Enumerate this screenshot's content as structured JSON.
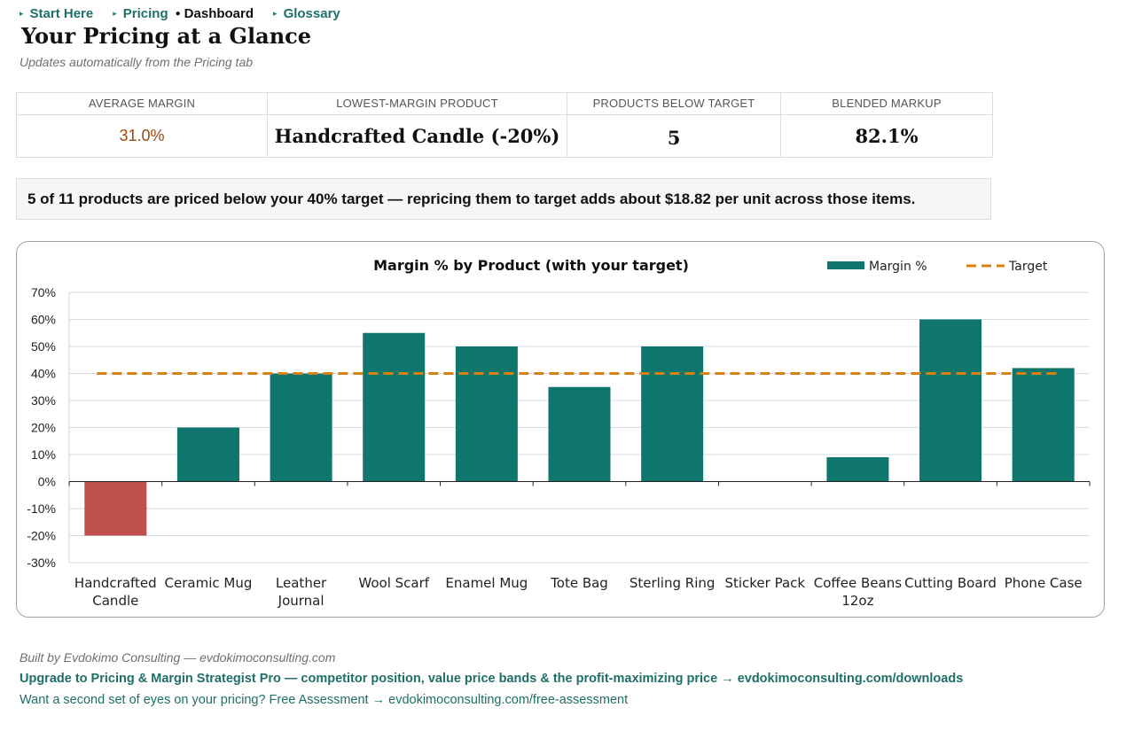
{
  "nav": {
    "items": [
      {
        "label": "Start Here",
        "current": false
      },
      {
        "label": "Pricing",
        "current": false
      },
      {
        "label": "Dashboard",
        "current": true
      },
      {
        "label": "Glossary",
        "current": false
      }
    ]
  },
  "header": {
    "title": "Your Pricing at a Glance",
    "subtitle": "Updates automatically from the Pricing tab"
  },
  "kpis": [
    {
      "label": "AVERAGE MARGIN",
      "value": "31.0%"
    },
    {
      "label": "LOWEST-MARGIN PRODUCT",
      "value": "Handcrafted Candle (-20%)"
    },
    {
      "label": "PRODUCTS BELOW TARGET",
      "value": "5"
    },
    {
      "label": "BLENDED MARKUP",
      "value": "82.1%"
    }
  ],
  "banner": {
    "text": "5 of 11 products are priced below your 40% target — repricing them to target adds about $18.82 per unit across those items."
  },
  "chart_data": {
    "type": "bar",
    "title": "Margin % by Product (with your target)",
    "categories": [
      "Handcrafted Candle",
      "Ceramic Mug",
      "Leather Journal",
      "Wool Scarf",
      "Enamel Mug",
      "Tote Bag",
      "Sterling Ring",
      "Sticker Pack",
      "Coffee Beans 12oz",
      "Cutting Board",
      "Phone Case"
    ],
    "category_lines": [
      [
        "Handcrafted",
        "Candle"
      ],
      [
        "Ceramic Mug"
      ],
      [
        "Leather",
        "Journal"
      ],
      [
        "Wool Scarf"
      ],
      [
        "Enamel Mug"
      ],
      [
        "Tote Bag"
      ],
      [
        "Sterling Ring"
      ],
      [
        "Sticker Pack"
      ],
      [
        "Coffee Beans",
        "12oz"
      ],
      [
        "Cutting Board"
      ],
      [
        "Phone Case"
      ]
    ],
    "series": [
      {
        "name": "Margin %",
        "values": [
          -20,
          20,
          40,
          55,
          50,
          35,
          50,
          0,
          9,
          60,
          42
        ]
      }
    ],
    "target": {
      "name": "Target",
      "value": 40
    },
    "ylim": [
      -30,
      70
    ],
    "yticks": [
      -30,
      -20,
      -10,
      0,
      10,
      20,
      30,
      40,
      50,
      60,
      70
    ],
    "ytick_labels": [
      "-30%",
      "-20%",
      "-10%",
      "0%",
      "10%",
      "20%",
      "30%",
      "40%",
      "50%",
      "60%",
      "70%"
    ],
    "legend_position": "top-right",
    "grid": true,
    "colors": {
      "positive": "#0f766e",
      "negative": "#c0504d",
      "target": "#d7820f",
      "grid": "#d6dde6"
    }
  },
  "footer": {
    "credit": "Built by Evdokimo Consulting — evdokimoconsulting.com",
    "upgrade": "Upgrade to Pricing & Margin Strategist Pro — competitor position, value price bands & the profit-maximizing price → evdokimoconsulting.com/downloads",
    "assessment": "Want a second set of eyes on your pricing? Free Assessment → evdokimoconsulting.com/free-assessment"
  }
}
